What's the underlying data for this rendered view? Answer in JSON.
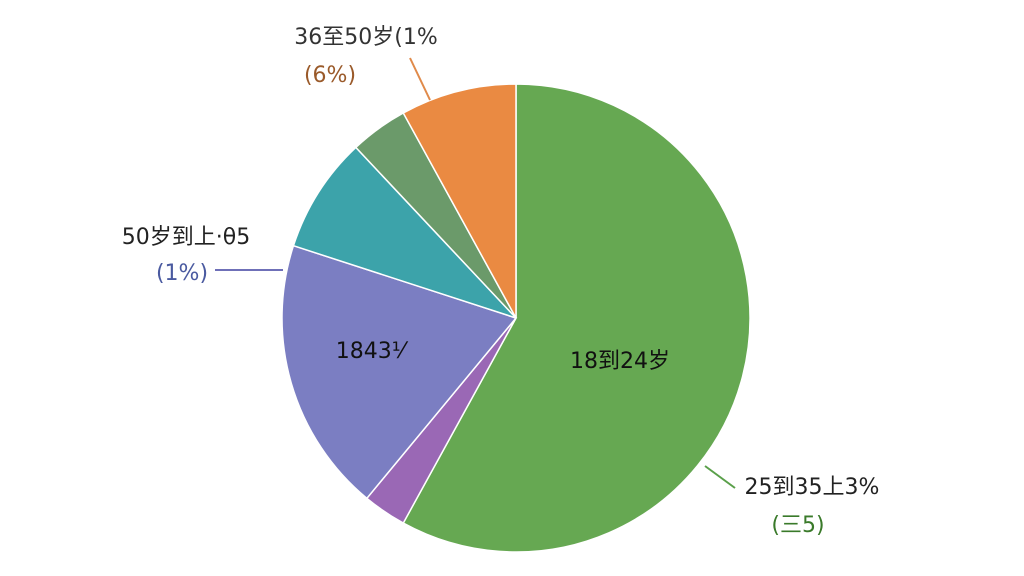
{
  "chart_data": {
    "type": "pie",
    "values": [
      58,
      3,
      19,
      8,
      4,
      8
    ],
    "colors": [
      "#66a852",
      "#9a68b5",
      "#7b7ec2",
      "#3ca3aa",
      "#6b9a6a",
      "#ea8a42"
    ],
    "annotations": [
      "36至50岁(1%",
      "(6%)",
      "50岁到上·θ5",
      "(1%)",
      "1843⅟",
      "18到24岁",
      "25到35上3%",
      "(三5)"
    ]
  }
}
